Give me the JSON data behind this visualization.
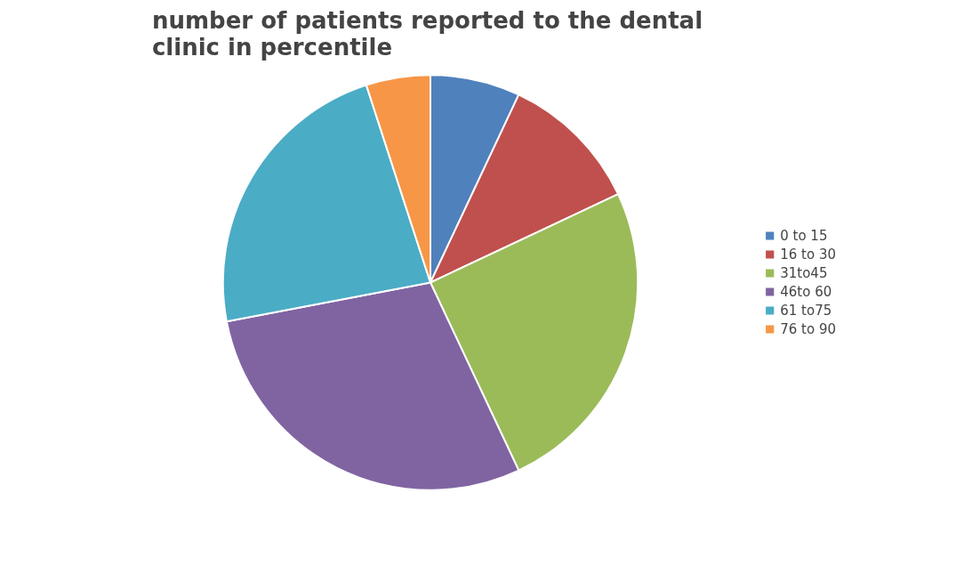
{
  "chart_data": {
    "type": "pie",
    "title": "number of patients reported to the dental clinic in percentile",
    "categories": [
      "0 to 15",
      "16 to 30",
      "31to45",
      "46to 60",
      "61 to75",
      "76 to 90"
    ],
    "values": [
      7,
      11,
      25,
      29,
      23,
      5
    ],
    "colors": [
      "#4f81bd",
      "#c0504d",
      "#9bbb59",
      "#8064a2",
      "#4bacc6",
      "#f79646"
    ],
    "legend": "right"
  }
}
